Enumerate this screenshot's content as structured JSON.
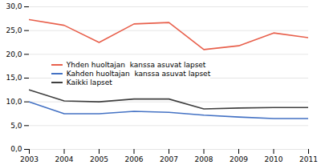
{
  "chart_data": {
    "type": "line",
    "x": [
      2003,
      2004,
      2005,
      2006,
      2007,
      2008,
      2009,
      2010,
      2011
    ],
    "series": [
      {
        "name": "Yhden huoltajan  kanssa asuvat lapset",
        "color": "#e8604c",
        "values": [
          27.3,
          26.1,
          22.5,
          26.4,
          26.7,
          21.0,
          21.8,
          24.5,
          23.5
        ]
      },
      {
        "name": "Kahden huoltajan  kanssa asuvat lapset",
        "color": "#4472c4",
        "values": [
          10.0,
          7.5,
          7.5,
          8.0,
          7.8,
          7.2,
          6.8,
          6.5,
          6.5
        ]
      },
      {
        "name": "Kaikki lapset",
        "color": "#404040",
        "values": [
          12.5,
          10.2,
          10.0,
          10.6,
          10.6,
          8.5,
          8.7,
          8.8,
          8.8
        ]
      }
    ],
    "xlim": [
      2003,
      2011
    ],
    "xticks": [
      2003,
      2004,
      2005,
      2006,
      2007,
      2008,
      2009,
      2010,
      2011
    ],
    "ylim": [
      0,
      30
    ],
    "yticks": [
      {
        "value": 0,
        "label": "0,0"
      },
      {
        "value": 5,
        "label": "5,0"
      },
      {
        "value": 10,
        "label": "10,0"
      },
      {
        "value": 15,
        "label": "15,0"
      },
      {
        "value": 20,
        "label": "20,0"
      },
      {
        "value": 25,
        "label": "25,0"
      },
      {
        "value": 30,
        "label": "30,0"
      }
    ],
    "grid": true,
    "legend": "center left"
  }
}
